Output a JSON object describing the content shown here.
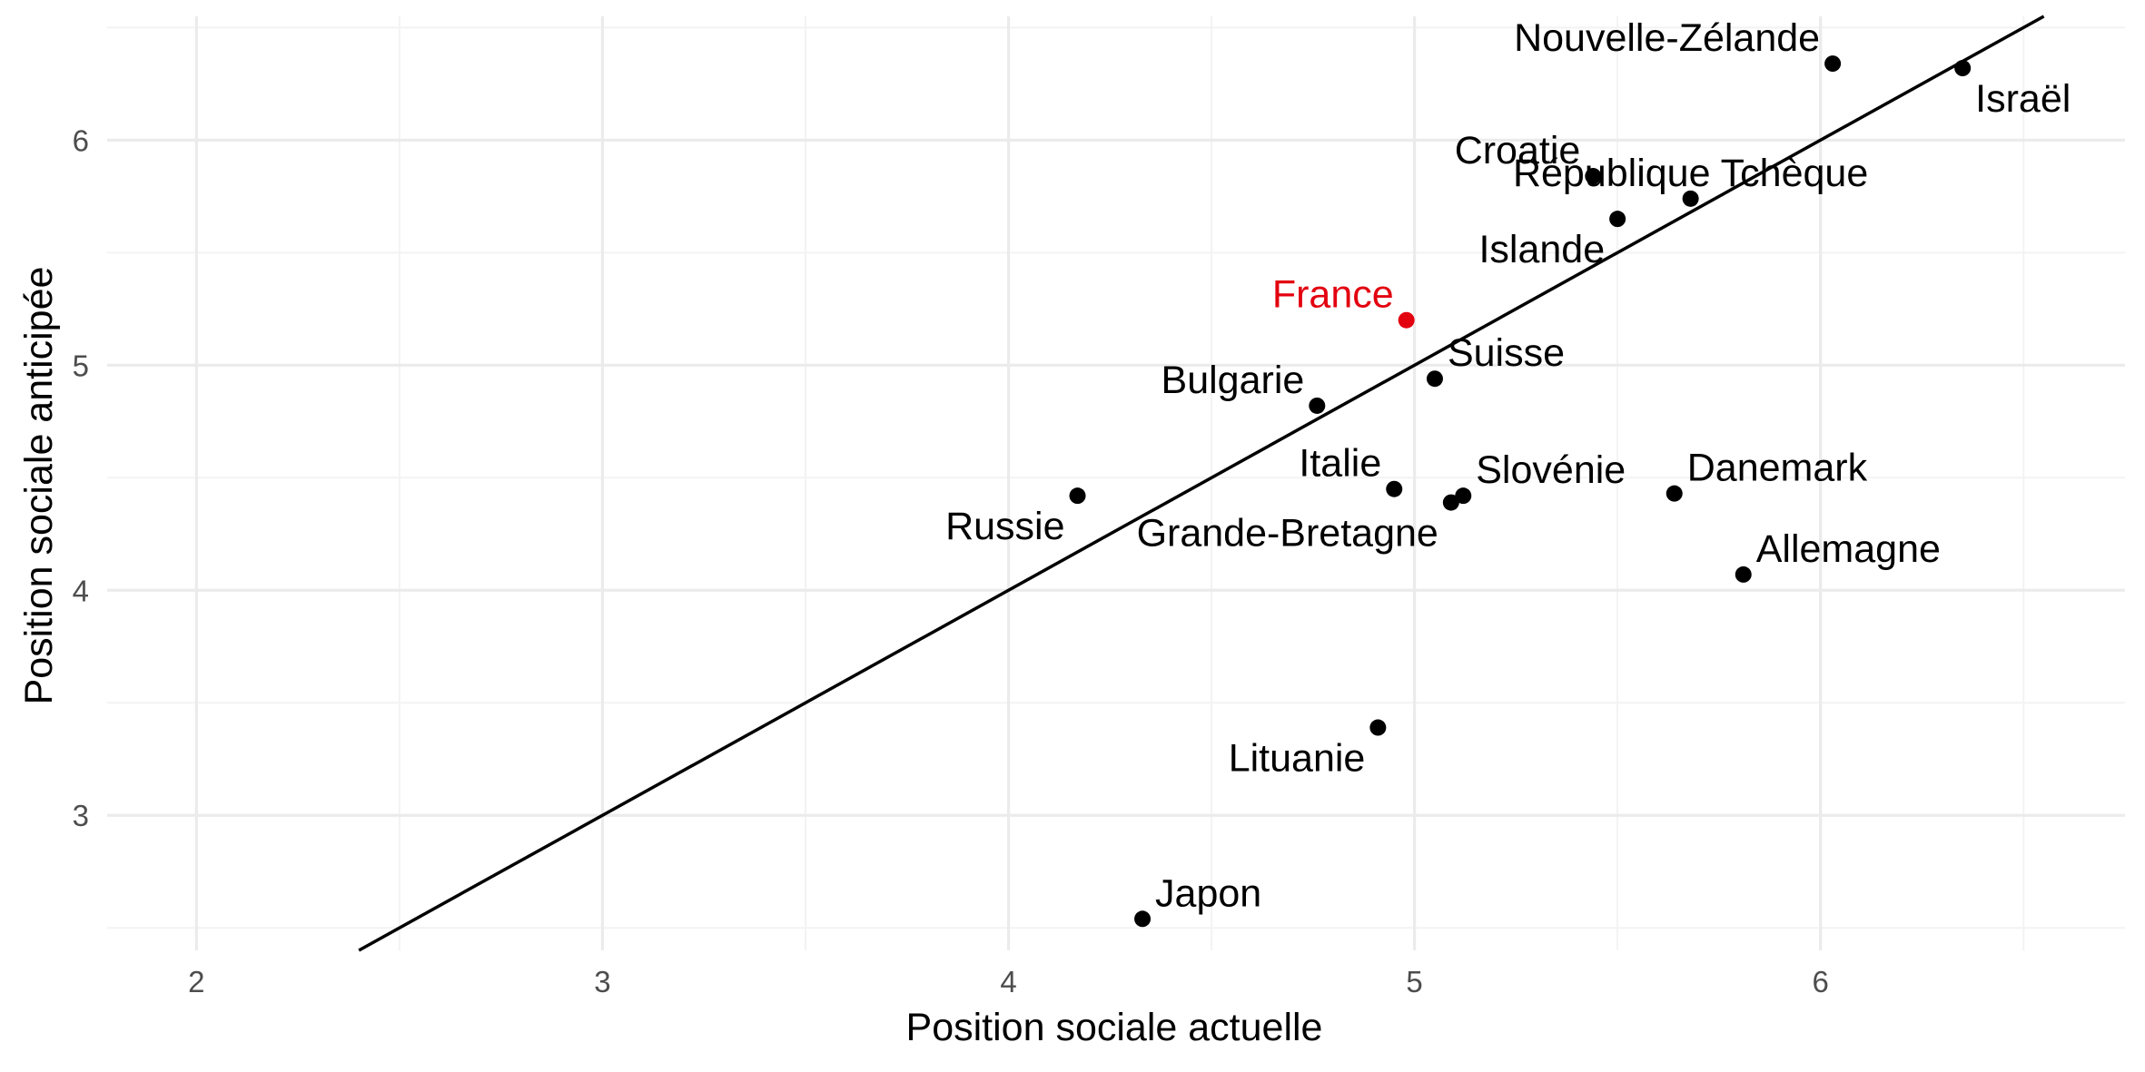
{
  "chart_data": {
    "type": "scatter",
    "title": "",
    "xlabel": "Position sociale actuelle",
    "ylabel": "Position sociale anticipée",
    "xlim": [
      1.78,
      6.75
    ],
    "ylim": [
      2.4,
      6.55
    ],
    "x_ticks": [
      2,
      3,
      4,
      5,
      6
    ],
    "y_ticks": [
      3,
      4,
      5,
      6
    ],
    "grid": true,
    "legend": "none",
    "reference_line": {
      "type": "identity",
      "slope": 1,
      "intercept": 0
    },
    "highlight_color": "#e3000f",
    "default_color": "#000000",
    "points": [
      {
        "label": "Nouvelle-Zélande",
        "x": 6.03,
        "y": 6.34,
        "highlight": false,
        "anchor": "left-above"
      },
      {
        "label": "Israël",
        "x": 6.35,
        "y": 6.32,
        "highlight": false,
        "anchor": "right-below"
      },
      {
        "label": "Croatie",
        "x": 5.44,
        "y": 5.84,
        "highlight": false,
        "anchor": "left-above"
      },
      {
        "label": "République Tchèque",
        "x": 5.68,
        "y": 5.74,
        "highlight": false,
        "anchor": "center-above"
      },
      {
        "label": "Islande",
        "x": 5.5,
        "y": 5.65,
        "highlight": false,
        "anchor": "left-below"
      },
      {
        "label": "France",
        "x": 4.98,
        "y": 5.2,
        "highlight": true,
        "anchor": "left-above"
      },
      {
        "label": "Suisse",
        "x": 5.05,
        "y": 4.94,
        "highlight": false,
        "anchor": "right-above"
      },
      {
        "label": "Bulgarie",
        "x": 4.76,
        "y": 4.82,
        "highlight": false,
        "anchor": "left-above"
      },
      {
        "label": "Italie",
        "x": 4.95,
        "y": 4.45,
        "highlight": false,
        "anchor": "left-above"
      },
      {
        "label": "Slovénie",
        "x": 5.12,
        "y": 4.42,
        "highlight": false,
        "anchor": "right-above"
      },
      {
        "label": "Grande-Bretagne",
        "x": 5.09,
        "y": 4.39,
        "highlight": false,
        "anchor": "left-below"
      },
      {
        "label": "Danemark",
        "x": 5.64,
        "y": 4.43,
        "highlight": false,
        "anchor": "right-above"
      },
      {
        "label": "Russie",
        "x": 4.17,
        "y": 4.42,
        "highlight": false,
        "anchor": "left-below"
      },
      {
        "label": "Allemagne",
        "x": 5.81,
        "y": 4.07,
        "highlight": false,
        "anchor": "right-above"
      },
      {
        "label": "Lituanie",
        "x": 4.91,
        "y": 3.39,
        "highlight": false,
        "anchor": "left-below"
      },
      {
        "label": "Japon",
        "x": 4.33,
        "y": 2.54,
        "highlight": false,
        "anchor": "right-above"
      }
    ]
  }
}
